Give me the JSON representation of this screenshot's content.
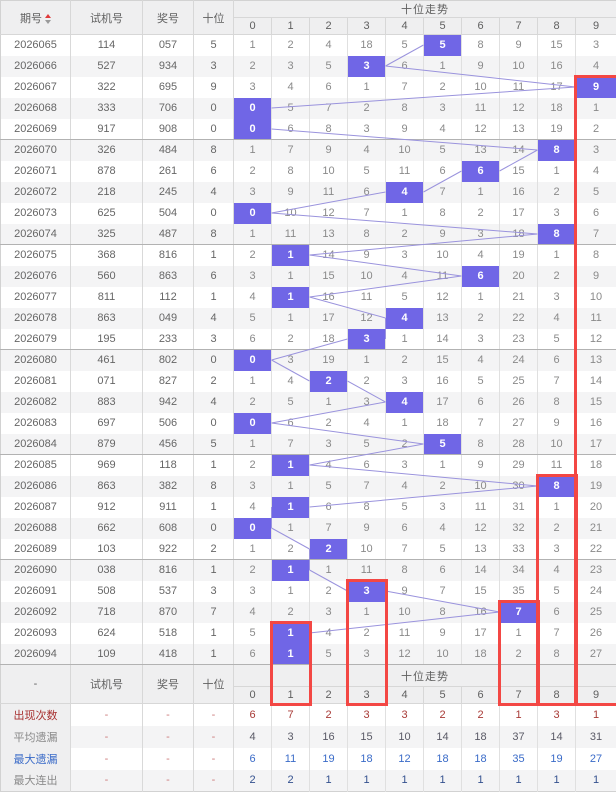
{
  "header": {
    "period": "期号",
    "test": "试机号",
    "prize": "奖号",
    "tens": "十位",
    "trend_title": "十位走势",
    "digits": [
      "0",
      "1",
      "2",
      "3",
      "4",
      "5",
      "6",
      "7",
      "8",
      "9"
    ],
    "footer_period_placeholder": "-"
  },
  "colors": {
    "highlight": "#7066e6",
    "line": "#9a93dd",
    "red_box": "#f34744",
    "header_bg": "#efeff0",
    "alt_row_bg": "#f4f4f5",
    "appear_text": "#a83a36",
    "max_miss_text": "#3a6bc8"
  },
  "rows": [
    {
      "period": "2026065",
      "test": "114",
      "prize": "057",
      "tens": 5,
      "cells": [
        1,
        2,
        4,
        18,
        5,
        5,
        8,
        9,
        15,
        3
      ]
    },
    {
      "period": "2026066",
      "test": "527",
      "prize": "934",
      "tens": 3,
      "cells": [
        2,
        3,
        5,
        3,
        6,
        1,
        9,
        10,
        16,
        4
      ]
    },
    {
      "period": "2026067",
      "test": "322",
      "prize": "695",
      "tens": 9,
      "cells": [
        3,
        4,
        6,
        1,
        7,
        2,
        10,
        11,
        17,
        9
      ]
    },
    {
      "period": "2026068",
      "test": "333",
      "prize": "706",
      "tens": 0,
      "cells": [
        0,
        5,
        7,
        2,
        8,
        3,
        11,
        12,
        18,
        1
      ]
    },
    {
      "period": "2026069",
      "test": "917",
      "prize": "908",
      "tens": 0,
      "cells": [
        0,
        6,
        8,
        3,
        9,
        4,
        12,
        13,
        19,
        2
      ]
    },
    {
      "period": "2026070",
      "test": "326",
      "prize": "484",
      "tens": 8,
      "cells": [
        1,
        7,
        9,
        4,
        10,
        5,
        13,
        14,
        8,
        3
      ]
    },
    {
      "period": "2026071",
      "test": "878",
      "prize": "261",
      "tens": 6,
      "cells": [
        2,
        8,
        10,
        5,
        11,
        6,
        6,
        15,
        1,
        4
      ]
    },
    {
      "period": "2026072",
      "test": "218",
      "prize": "245",
      "tens": 4,
      "cells": [
        3,
        9,
        11,
        6,
        4,
        7,
        1,
        16,
        2,
        5
      ]
    },
    {
      "period": "2026073",
      "test": "625",
      "prize": "504",
      "tens": 0,
      "cells": [
        0,
        10,
        12,
        7,
        1,
        8,
        2,
        17,
        3,
        6
      ]
    },
    {
      "period": "2026074",
      "test": "325",
      "prize": "487",
      "tens": 8,
      "cells": [
        1,
        11,
        13,
        8,
        2,
        9,
        3,
        18,
        8,
        7
      ]
    },
    {
      "period": "2026075",
      "test": "368",
      "prize": "816",
      "tens": 1,
      "cells": [
        2,
        1,
        14,
        9,
        3,
        10,
        4,
        19,
        1,
        8
      ]
    },
    {
      "period": "2026076",
      "test": "560",
      "prize": "863",
      "tens": 6,
      "cells": [
        3,
        1,
        15,
        10,
        4,
        11,
        6,
        20,
        2,
        9
      ]
    },
    {
      "period": "2026077",
      "test": "811",
      "prize": "112",
      "tens": 1,
      "cells": [
        4,
        1,
        16,
        11,
        5,
        12,
        1,
        21,
        3,
        10
      ]
    },
    {
      "period": "2026078",
      "test": "863",
      "prize": "049",
      "tens": 4,
      "cells": [
        5,
        1,
        17,
        12,
        4,
        13,
        2,
        22,
        4,
        11
      ]
    },
    {
      "period": "2026079",
      "test": "195",
      "prize": "233",
      "tens": 3,
      "cells": [
        6,
        2,
        18,
        3,
        1,
        14,
        3,
        23,
        5,
        12
      ]
    },
    {
      "period": "2026080",
      "test": "461",
      "prize": "802",
      "tens": 0,
      "cells": [
        0,
        3,
        19,
        1,
        2,
        15,
        4,
        24,
        6,
        13
      ]
    },
    {
      "period": "2026081",
      "test": "071",
      "prize": "827",
      "tens": 2,
      "cells": [
        1,
        4,
        2,
        2,
        3,
        16,
        5,
        25,
        7,
        14
      ]
    },
    {
      "period": "2026082",
      "test": "883",
      "prize": "942",
      "tens": 4,
      "cells": [
        2,
        5,
        1,
        3,
        4,
        17,
        6,
        26,
        8,
        15
      ]
    },
    {
      "period": "2026083",
      "test": "697",
      "prize": "506",
      "tens": 0,
      "cells": [
        0,
        6,
        2,
        4,
        1,
        18,
        7,
        27,
        9,
        16
      ]
    },
    {
      "period": "2026084",
      "test": "879",
      "prize": "456",
      "tens": 5,
      "cells": [
        1,
        7,
        3,
        5,
        2,
        5,
        8,
        28,
        10,
        17
      ]
    },
    {
      "period": "2026085",
      "test": "969",
      "prize": "118",
      "tens": 1,
      "cells": [
        2,
        1,
        4,
        6,
        3,
        1,
        9,
        29,
        11,
        18
      ]
    },
    {
      "period": "2026086",
      "test": "863",
      "prize": "382",
      "tens": 8,
      "cells": [
        3,
        1,
        5,
        7,
        4,
        2,
        10,
        30,
        8,
        19
      ]
    },
    {
      "period": "2026087",
      "test": "912",
      "prize": "911",
      "tens": 1,
      "cells": [
        4,
        1,
        6,
        8,
        5,
        3,
        11,
        31,
        1,
        20
      ]
    },
    {
      "period": "2026088",
      "test": "662",
      "prize": "608",
      "tens": 0,
      "cells": [
        0,
        1,
        7,
        9,
        6,
        4,
        12,
        32,
        2,
        21
      ]
    },
    {
      "period": "2026089",
      "test": "103",
      "prize": "922",
      "tens": 2,
      "cells": [
        1,
        2,
        2,
        10,
        7,
        5,
        13,
        33,
        3,
        22
      ]
    },
    {
      "period": "2026090",
      "test": "038",
      "prize": "816",
      "tens": 1,
      "cells": [
        2,
        1,
        1,
        11,
        8,
        6,
        14,
        34,
        4,
        23
      ]
    },
    {
      "period": "2026091",
      "test": "508",
      "prize": "537",
      "tens": 3,
      "cells": [
        3,
        1,
        2,
        3,
        9,
        7,
        15,
        35,
        5,
        24
      ]
    },
    {
      "period": "2026092",
      "test": "718",
      "prize": "870",
      "tens": 7,
      "cells": [
        4,
        2,
        3,
        1,
        10,
        8,
        16,
        7,
        6,
        25
      ]
    },
    {
      "period": "2026093",
      "test": "624",
      "prize": "518",
      "tens": 1,
      "cells": [
        5,
        1,
        4,
        2,
        11,
        9,
        17,
        1,
        7,
        26
      ]
    },
    {
      "period": "2026094",
      "test": "109",
      "prize": "418",
      "tens": 1,
      "cells": [
        6,
        1,
        5,
        3,
        12,
        10,
        18,
        2,
        8,
        27
      ]
    }
  ],
  "summary": [
    {
      "label": "出现次数",
      "cls": "appear",
      "values": [
        6,
        7,
        2,
        3,
        3,
        2,
        2,
        1,
        3,
        1
      ]
    },
    {
      "label": "平均遗漏",
      "cls": "avg",
      "values": [
        4,
        3,
        16,
        15,
        10,
        14,
        18,
        37,
        14,
        31
      ]
    },
    {
      "label": "最大遗漏",
      "cls": "maxmiss",
      "values": [
        6,
        11,
        19,
        18,
        12,
        18,
        18,
        35,
        19,
        27
      ]
    },
    {
      "label": "最大连出",
      "cls": "maxrun",
      "values": [
        2,
        2,
        1,
        1,
        1,
        1,
        1,
        1,
        1,
        1
      ]
    }
  ],
  "red_boxes": [
    {
      "col": 9,
      "from_row": 2
    },
    {
      "col": 8,
      "from_row": 21
    },
    {
      "col": 3,
      "from_row": 26
    },
    {
      "col": 7,
      "from_row": 27
    },
    {
      "col": 1,
      "from_row": 28
    }
  ]
}
